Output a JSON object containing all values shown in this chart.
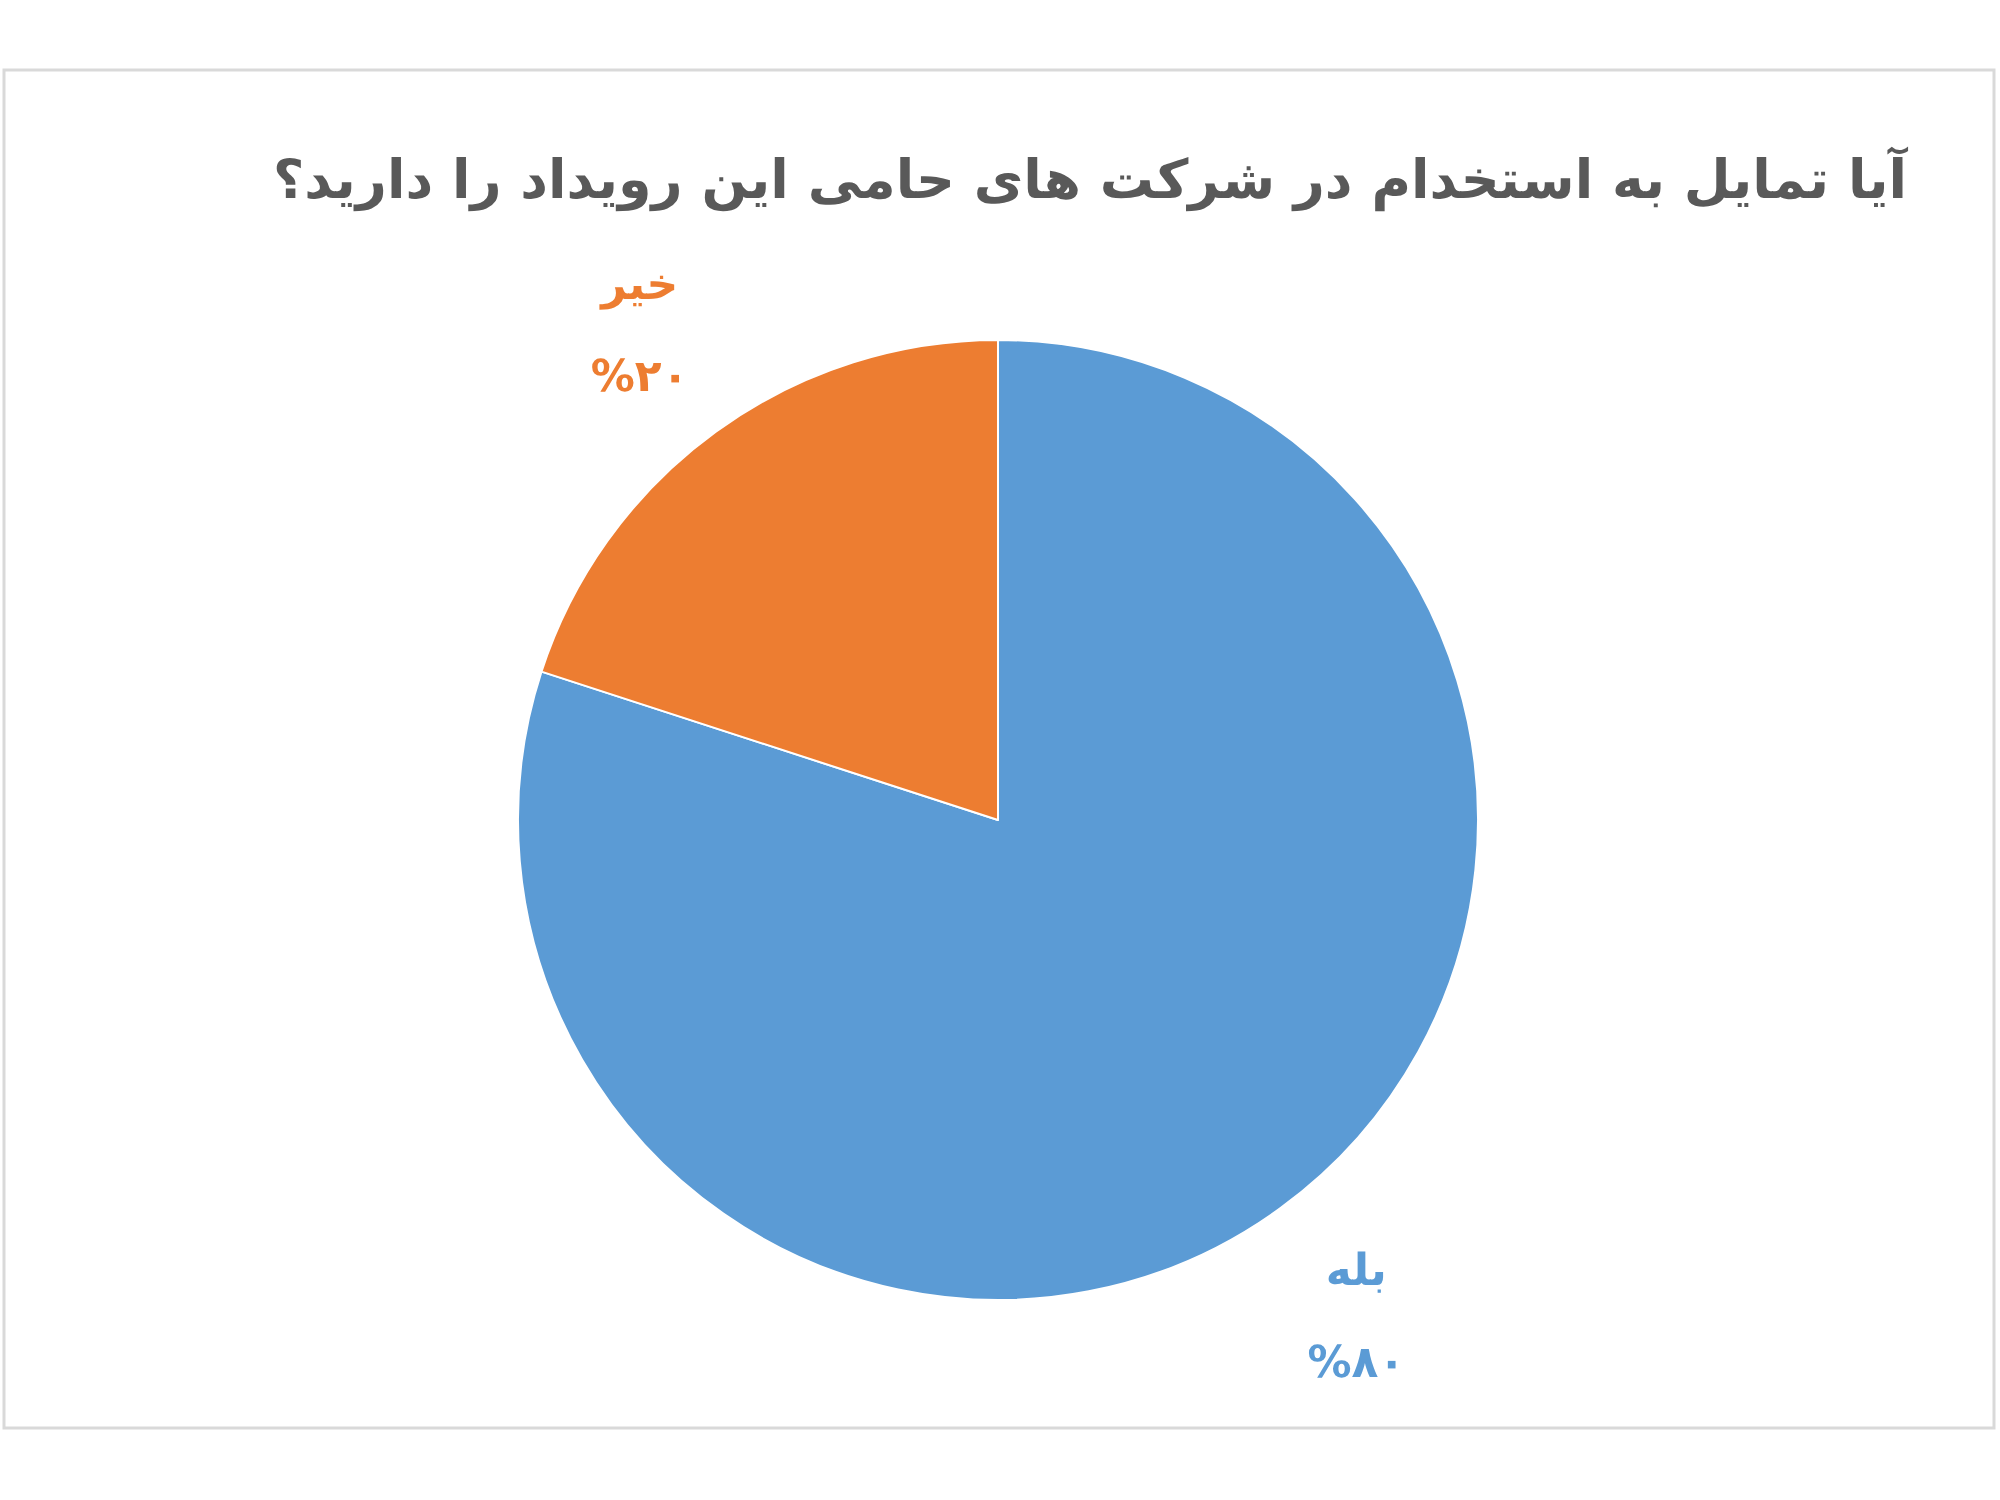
{
  "chart_data": {
    "type": "pie",
    "title": "آیا تمایل به استخدام در شرکت های حامی این رویداد را دارید؟",
    "categories": [
      "بله",
      "خیر"
    ],
    "values": [
      80,
      20
    ],
    "colors": [
      "#5b9bd5",
      "#ed7d31"
    ],
    "value_labels": [
      "%۸۰",
      "%۲۰"
    ]
  }
}
